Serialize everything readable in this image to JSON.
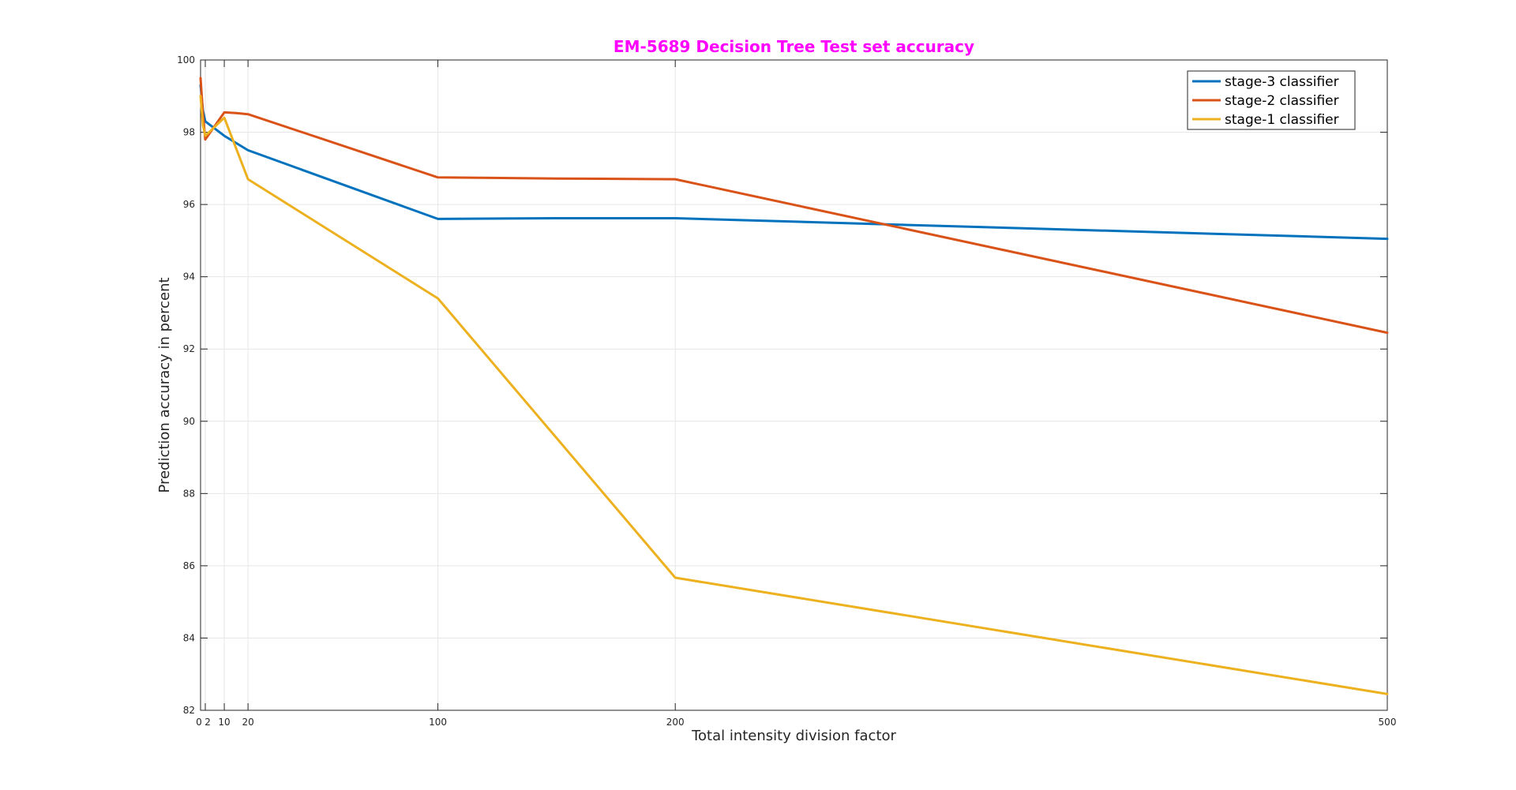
{
  "chart_data": {
    "type": "line",
    "title": "EM-5689 Decision Tree Test set accuracy",
    "title_color": "#ff00ff",
    "xlabel": "Total intensity division factor",
    "ylabel": "Prediction accuracy in percent",
    "xlim": [
      0,
      500
    ],
    "ylim": [
      82,
      100
    ],
    "xticks": [
      0,
      2,
      10,
      20,
      100,
      200,
      500
    ],
    "xtick_labels": [
      "0",
      "2",
      "10",
      "20",
      "100",
      "200",
      "500"
    ],
    "yticks": [
      82,
      84,
      86,
      88,
      90,
      92,
      94,
      96,
      98,
      100
    ],
    "ytick_labels": [
      "82",
      "84",
      "86",
      "88",
      "90",
      "92",
      "94",
      "96",
      "98",
      "100"
    ],
    "grid": true,
    "legend_position": "top-right",
    "series": [
      {
        "name": "stage-3 classifier",
        "color": "#0072bd",
        "x": [
          0,
          1,
          2,
          10,
          20,
          100,
          150,
          200,
          500
        ],
        "y": [
          99.3,
          98.6,
          98.3,
          97.9,
          97.5,
          95.6,
          95.62,
          95.62,
          95.05
        ]
      },
      {
        "name": "stage-2 classifier",
        "color": "#d95319",
        "x": [
          0,
          1,
          2,
          10,
          15,
          20,
          100,
          150,
          200,
          500
        ],
        "y": [
          99.5,
          98.5,
          97.8,
          98.55,
          98.53,
          98.5,
          96.75,
          96.72,
          96.7,
          92.45
        ]
      },
      {
        "name": "stage-1 classifier",
        "color": "#edb120",
        "x": [
          0,
          1,
          2,
          10,
          20,
          100,
          200,
          500
        ],
        "y": [
          99.0,
          98.2,
          97.9,
          98.4,
          96.7,
          93.4,
          85.67,
          82.45
        ]
      }
    ]
  }
}
